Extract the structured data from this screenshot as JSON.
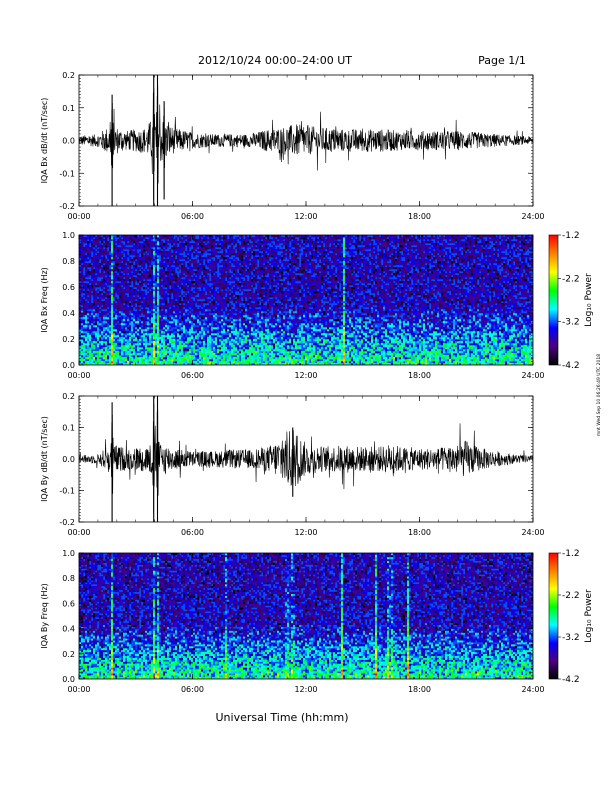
{
  "header": {
    "title": "2012/10/24  00:00–24:00 UT",
    "page": "Page 1/1"
  },
  "xlabel": "Universal Time (hh:mm)",
  "side_note": "mnt Wed Sep 10 06:26:49 UTC 2018",
  "colorbar": {
    "label": "Log₁₀ Power",
    "ticks": [
      "-1.2",
      "-2.2",
      "-3.2",
      "-4.2"
    ],
    "range": [
      -4.2,
      -1.2
    ],
    "colors": [
      "#000000",
      "#4b0082",
      "#0000ff",
      "#00ffff",
      "#00ff00",
      "#ffff00",
      "#ff8000",
      "#ff0000"
    ]
  },
  "chart_data": [
    {
      "type": "line",
      "id": "bx-dbdt",
      "ylabel": "IQA Bx dB/dt (nT/sec)",
      "xlim": [
        0,
        24
      ],
      "ylim": [
        -0.2,
        0.2
      ],
      "yticks": [
        "0.2",
        "0.1",
        "0.0",
        "-0.1",
        "-0.2"
      ],
      "xticks": [
        "00:00",
        "06:00",
        "12:00",
        "18:00",
        "24:00"
      ],
      "activity_envelope": {
        "x": [
          0,
          1,
          1.7,
          2.5,
          3.5,
          4,
          4.4,
          5,
          6,
          7,
          8,
          9,
          10,
          10.5,
          11,
          11.5,
          12,
          13,
          14,
          15,
          16,
          17,
          18,
          19,
          20,
          21,
          22,
          23,
          24
        ],
        "amp": [
          0.015,
          0.02,
          0.05,
          0.03,
          0.04,
          0.08,
          0.07,
          0.04,
          0.025,
          0.02,
          0.02,
          0.02,
          0.035,
          0.04,
          0.045,
          0.05,
          0.045,
          0.04,
          0.035,
          0.035,
          0.035,
          0.03,
          0.03,
          0.03,
          0.03,
          0.025,
          0.02,
          0.015,
          0.012
        ]
      },
      "spikes": [
        {
          "x": 1.75,
          "min": -0.2,
          "max": 0.14
        },
        {
          "x": 3.95,
          "min": -0.2,
          "max": 0.2
        },
        {
          "x": 4.15,
          "min": -0.2,
          "max": 0.2
        },
        {
          "x": 4.5,
          "min": -0.18,
          "max": 0.12
        }
      ]
    },
    {
      "type": "heatmap",
      "id": "bx-freq",
      "ylabel": "IQA Bx Freq (Hz)",
      "xlim": [
        0,
        24
      ],
      "ylim": [
        0,
        1
      ],
      "yticks": [
        "1.0",
        "0.8",
        "0.6",
        "0.4",
        "0.2",
        "0.0"
      ],
      "xticks": [
        "00:00",
        "06:00",
        "12:00",
        "18:00",
        "24:00"
      ],
      "colorbar_range": [
        -4.2,
        -1.2
      ],
      "bright_stripes": [
        1.75,
        3.95,
        4.15,
        14.0
      ]
    },
    {
      "type": "line",
      "id": "by-dbdt",
      "ylabel": "IQA By dB/dt (nT/sec)",
      "xlim": [
        0,
        24
      ],
      "ylim": [
        -0.2,
        0.2
      ],
      "yticks": [
        "0.2",
        "0.1",
        "0.0",
        "-0.1",
        "-0.2"
      ],
      "xticks": [
        "00:00",
        "06:00",
        "12:00",
        "18:00",
        "24:00"
      ],
      "activity_envelope": {
        "x": [
          0,
          1,
          1.7,
          2.5,
          3.5,
          4,
          4.5,
          5,
          6,
          7,
          8,
          9,
          10,
          10.5,
          11,
          11.3,
          11.6,
          12,
          13,
          14,
          15,
          16,
          16.5,
          17,
          18,
          19,
          20,
          20.5,
          21,
          22,
          23,
          24
        ],
        "amp": [
          0.012,
          0.015,
          0.05,
          0.035,
          0.04,
          0.06,
          0.05,
          0.035,
          0.025,
          0.025,
          0.03,
          0.03,
          0.04,
          0.06,
          0.09,
          0.1,
          0.08,
          0.05,
          0.04,
          0.045,
          0.04,
          0.04,
          0.05,
          0.04,
          0.035,
          0.035,
          0.05,
          0.06,
          0.04,
          0.025,
          0.015,
          0.01
        ]
      },
      "spikes": [
        {
          "x": 1.75,
          "min": -0.2,
          "max": 0.18
        },
        {
          "x": 3.95,
          "min": -0.2,
          "max": 0.2
        },
        {
          "x": 4.15,
          "min": -0.2,
          "max": 0.2
        },
        {
          "x": 11.3,
          "min": -0.12,
          "max": 0.1
        }
      ]
    },
    {
      "type": "heatmap",
      "id": "by-freq",
      "ylabel": "IQA By Freq (Hz)",
      "xlim": [
        0,
        24
      ],
      "ylim": [
        0,
        1
      ],
      "yticks": [
        "1.0",
        "0.8",
        "0.6",
        "0.4",
        "0.2",
        "0.0"
      ],
      "xticks": [
        "00:00",
        "06:00",
        "12:00",
        "18:00",
        "24:00"
      ],
      "colorbar_range": [
        -4.2,
        -1.2
      ],
      "bright_stripes": [
        1.75,
        3.95,
        4.15,
        7.8,
        11.0,
        11.3,
        13.9,
        15.7,
        16.3,
        16.5,
        17.4
      ]
    }
  ]
}
